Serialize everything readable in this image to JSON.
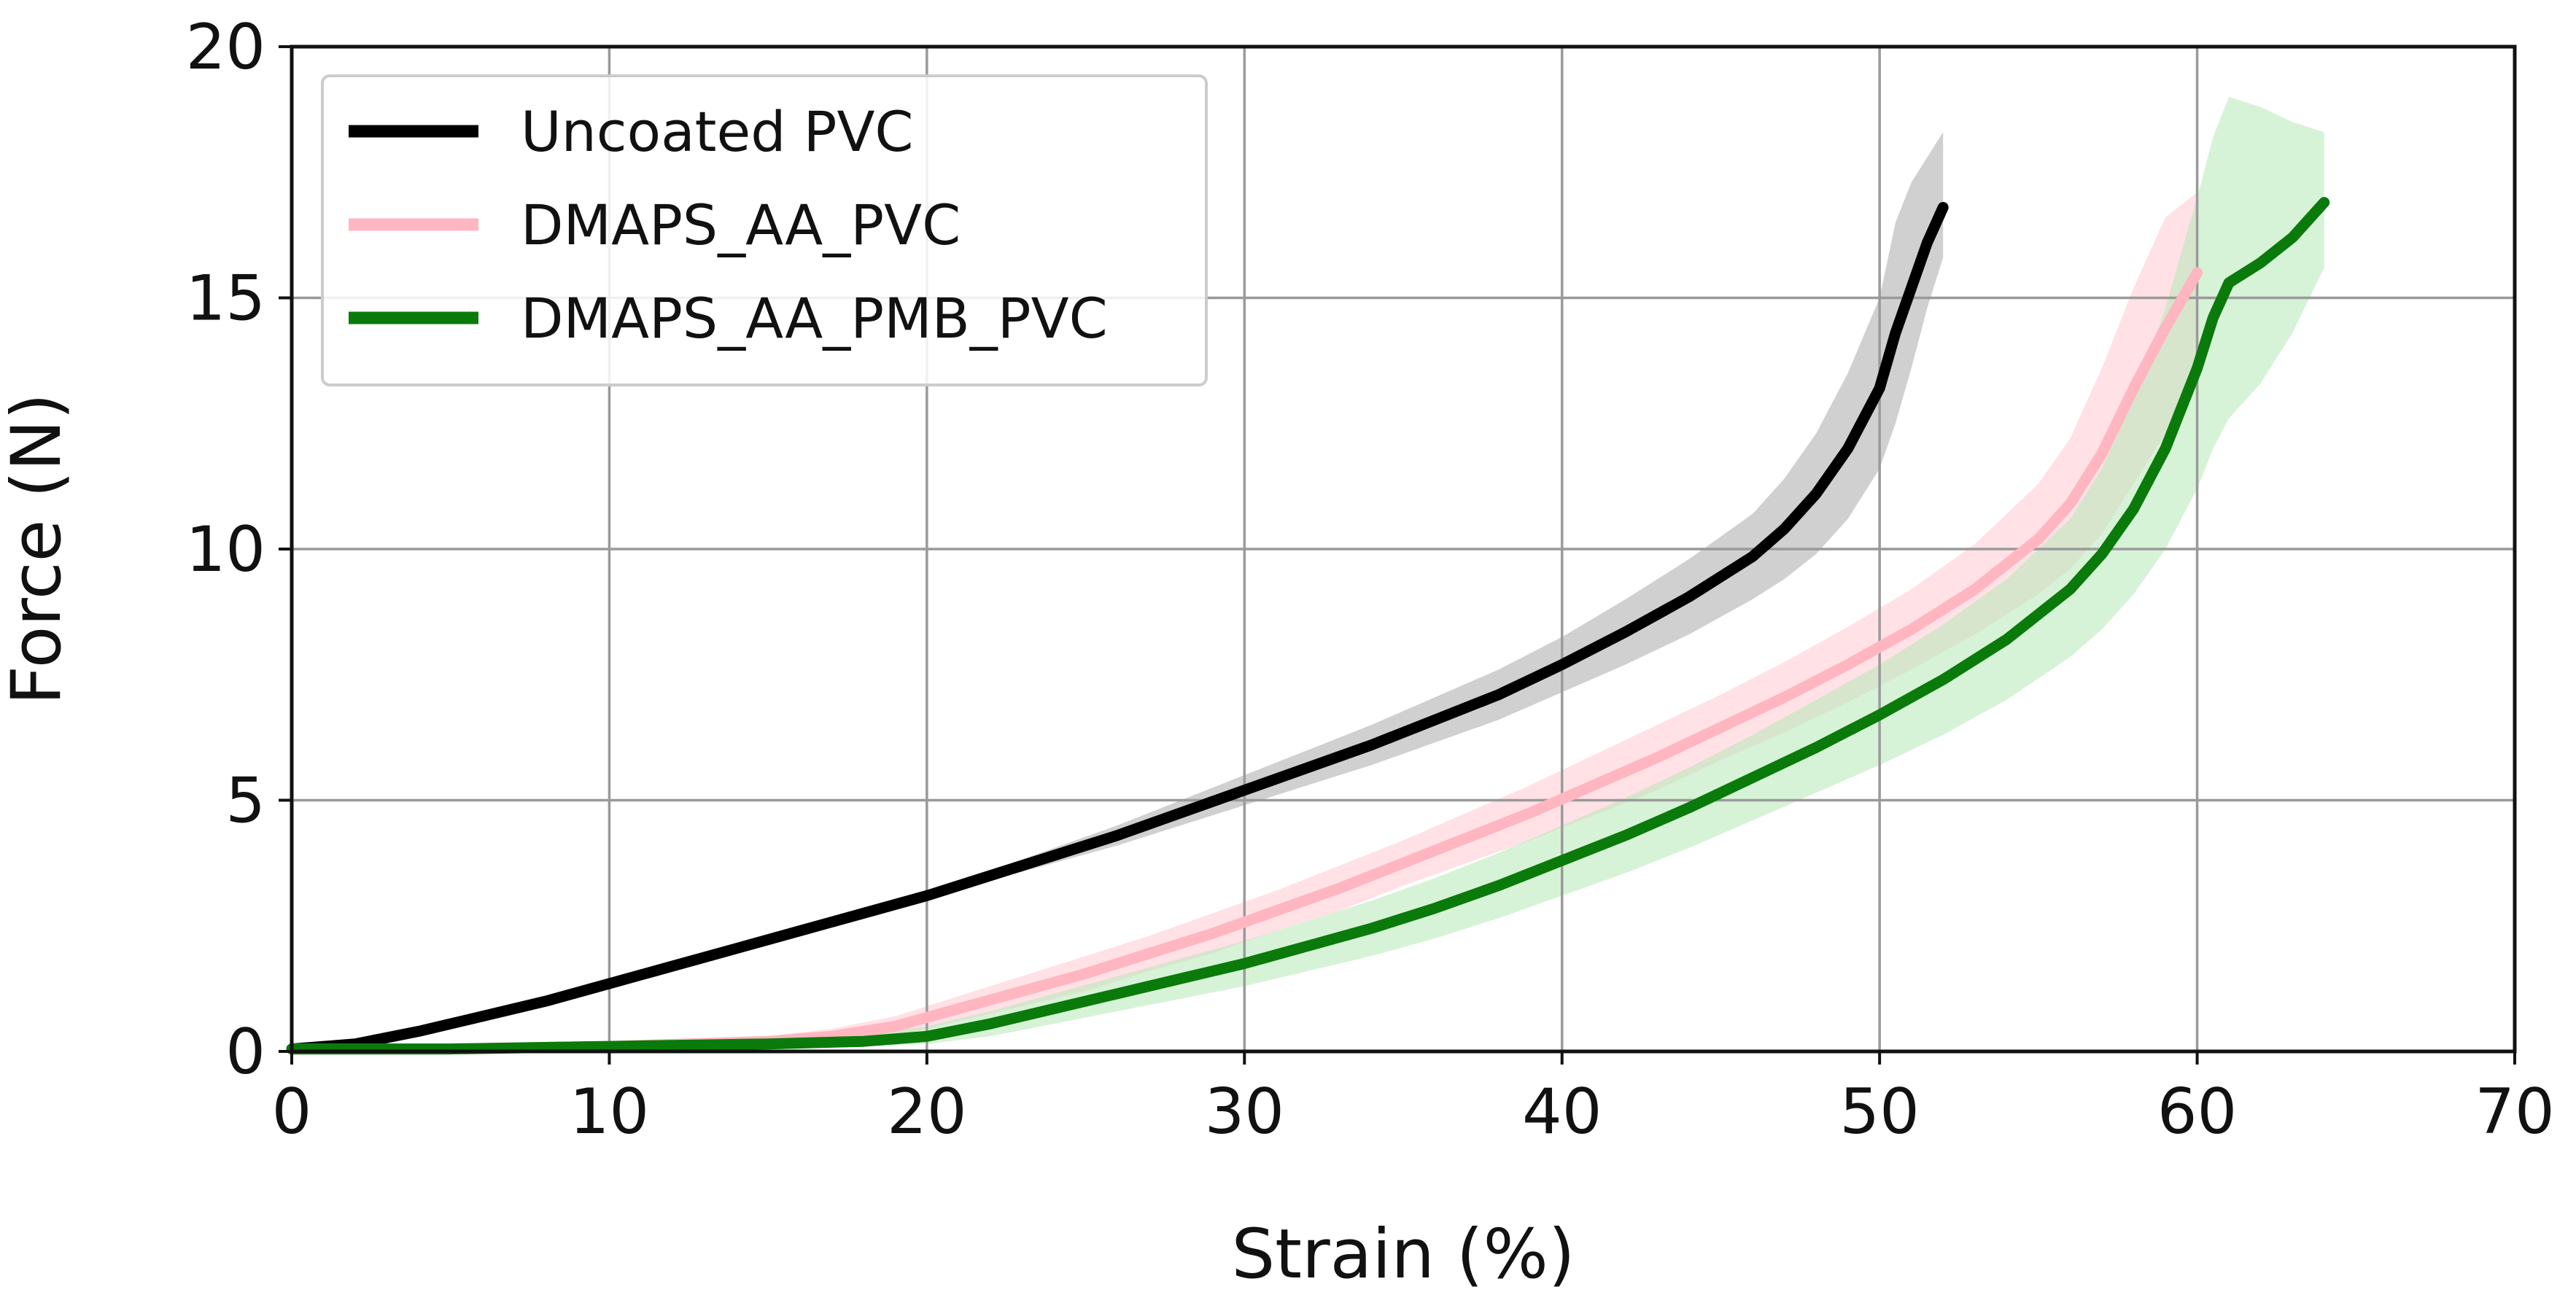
{
  "chart_data": {
    "type": "line",
    "title": "",
    "xlabel": "Strain (%)",
    "ylabel": "Force (N)",
    "xlim": [
      0,
      70
    ],
    "ylim": [
      0,
      20
    ],
    "grid": true,
    "legend_position": "top-left",
    "x_ticks": [
      0,
      10,
      20,
      30,
      40,
      50,
      60,
      70
    ],
    "y_ticks": [
      0,
      5,
      10,
      15,
      20
    ],
    "series": [
      {
        "name": "Uncoated PVC",
        "color": "#000000",
        "band_color": "#a9a9a9",
        "x": [
          0,
          2,
          4,
          6,
          8,
          10,
          12,
          14,
          16,
          18,
          20,
          22,
          24,
          26,
          28,
          30,
          32,
          34,
          36,
          38,
          40,
          42,
          44,
          46,
          47,
          48,
          49,
          50,
          50.5,
          51,
          51.5,
          52
        ],
        "y": [
          0.05,
          0.15,
          0.4,
          0.7,
          1.0,
          1.35,
          1.7,
          2.05,
          2.4,
          2.75,
          3.1,
          3.5,
          3.9,
          4.3,
          4.75,
          5.2,
          5.65,
          6.1,
          6.6,
          7.1,
          7.7,
          8.35,
          9.05,
          9.85,
          10.4,
          11.1,
          12.0,
          13.2,
          14.3,
          15.2,
          16.1,
          16.8
        ],
        "upper": [
          0.1,
          0.2,
          0.45,
          0.75,
          1.05,
          1.4,
          1.75,
          2.1,
          2.45,
          2.8,
          3.15,
          3.6,
          4.05,
          4.5,
          5.0,
          5.5,
          6.0,
          6.5,
          7.05,
          7.6,
          8.25,
          9.0,
          9.8,
          10.7,
          11.4,
          12.3,
          13.5,
          15.0,
          16.5,
          17.3,
          17.8,
          18.3
        ],
        "lower": [
          0.0,
          0.1,
          0.35,
          0.65,
          0.95,
          1.3,
          1.65,
          2.0,
          2.35,
          2.7,
          3.05,
          3.4,
          3.75,
          4.1,
          4.5,
          4.9,
          5.3,
          5.7,
          6.15,
          6.6,
          7.15,
          7.7,
          8.3,
          9.0,
          9.4,
          9.9,
          10.6,
          11.6,
          12.5,
          13.6,
          14.8,
          15.8
        ]
      },
      {
        "name": "DMAPS_AA_PVC",
        "color": "#ffb6c1",
        "band_color": "#ffc9d1",
        "x": [
          0,
          5,
          10,
          15,
          17,
          19,
          21,
          23,
          25,
          27,
          29,
          31,
          33,
          35,
          37,
          39,
          41,
          43,
          45,
          47,
          49,
          51,
          53,
          55,
          56,
          57,
          58,
          59,
          60
        ],
        "y": [
          0.05,
          0.05,
          0.1,
          0.2,
          0.3,
          0.5,
          0.85,
          1.2,
          1.55,
          1.95,
          2.35,
          2.8,
          3.25,
          3.75,
          4.25,
          4.75,
          5.3,
          5.85,
          6.45,
          7.05,
          7.7,
          8.4,
          9.2,
          10.2,
          10.9,
          11.9,
          13.2,
          14.4,
          15.5
        ],
        "upper": [
          0.1,
          0.1,
          0.15,
          0.3,
          0.45,
          0.7,
          1.1,
          1.5,
          1.9,
          2.3,
          2.75,
          3.2,
          3.7,
          4.2,
          4.75,
          5.3,
          5.9,
          6.5,
          7.1,
          7.75,
          8.45,
          9.2,
          10.1,
          11.3,
          12.2,
          13.6,
          15.2,
          16.6,
          17.1
        ],
        "lower": [
          0.0,
          0.0,
          0.05,
          0.1,
          0.15,
          0.3,
          0.6,
          0.9,
          1.2,
          1.6,
          1.95,
          2.4,
          2.8,
          3.3,
          3.75,
          4.2,
          4.7,
          5.2,
          5.8,
          6.35,
          6.95,
          7.6,
          8.3,
          9.1,
          9.6,
          10.3,
          11.3,
          12.3,
          13.9
        ]
      },
      {
        "name": "DMAPS_AA_PMB_PVC",
        "color": "#0a7a0a",
        "band_color": "#b6eab6",
        "x": [
          0,
          5,
          10,
          15,
          18,
          20,
          22,
          24,
          26,
          28,
          30,
          32,
          34,
          36,
          38,
          40,
          42,
          44,
          46,
          48,
          50,
          52,
          54,
          56,
          57,
          58,
          59,
          60,
          60.5,
          61,
          62,
          63,
          64
        ],
        "y": [
          0.05,
          0.05,
          0.1,
          0.15,
          0.2,
          0.3,
          0.55,
          0.85,
          1.15,
          1.45,
          1.75,
          2.1,
          2.45,
          2.85,
          3.3,
          3.8,
          4.3,
          4.85,
          5.45,
          6.05,
          6.7,
          7.4,
          8.2,
          9.2,
          9.9,
          10.8,
          12.0,
          13.6,
          14.6,
          15.3,
          15.7,
          16.2,
          16.9
        ],
        "upper": [
          0.1,
          0.1,
          0.15,
          0.25,
          0.35,
          0.5,
          0.8,
          1.15,
          1.5,
          1.85,
          2.2,
          2.6,
          3.0,
          3.45,
          3.95,
          4.5,
          5.05,
          5.65,
          6.3,
          7.0,
          7.7,
          8.5,
          9.4,
          10.6,
          11.6,
          13.0,
          14.8,
          17.0,
          18.2,
          19.0,
          18.8,
          18.5,
          18.3
        ],
        "lower": [
          0.0,
          0.0,
          0.05,
          0.08,
          0.1,
          0.15,
          0.3,
          0.55,
          0.8,
          1.05,
          1.3,
          1.6,
          1.9,
          2.25,
          2.65,
          3.1,
          3.55,
          4.05,
          4.6,
          5.15,
          5.7,
          6.3,
          7.0,
          7.85,
          8.4,
          9.1,
          10.0,
          11.2,
          12.0,
          12.6,
          13.3,
          14.3,
          15.6
        ]
      }
    ]
  }
}
